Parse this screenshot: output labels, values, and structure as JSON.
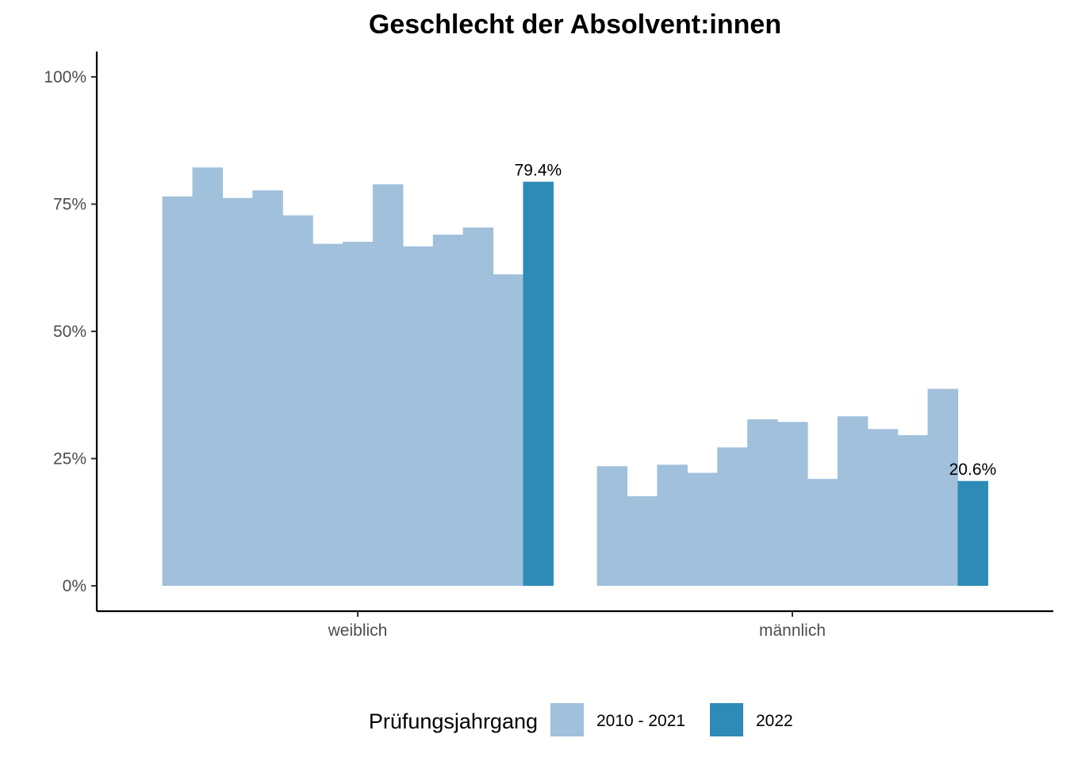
{
  "chart_data": {
    "type": "bar",
    "title": "Geschlecht der Absolvent:innen",
    "xlabel": "",
    "ylabel": "",
    "ylim": [
      0,
      1.0
    ],
    "yticks": [
      {
        "value": 0,
        "label": "0%"
      },
      {
        "value": 0.25,
        "label": "25%"
      },
      {
        "value": 0.5,
        "label": "50%"
      },
      {
        "value": 0.75,
        "label": "75%"
      },
      {
        "value": 1.0,
        "label": "100%"
      }
    ],
    "categories": [
      "weiblich",
      "männlich"
    ],
    "bars_per_category": 13,
    "values": {
      "weiblich": [
        0.765,
        0.822,
        0.762,
        0.777,
        0.728,
        0.672,
        0.676,
        0.789,
        0.667,
        0.69,
        0.704,
        0.612,
        0.794
      ],
      "männlich": [
        0.235,
        0.176,
        0.238,
        0.222,
        0.272,
        0.327,
        0.322,
        0.21,
        0.333,
        0.308,
        0.296,
        0.387,
        0.206
      ]
    },
    "series": [
      {
        "name": "2010 - 2021",
        "color": "#a0c0dc",
        "bar_indices": [
          0,
          1,
          2,
          3,
          4,
          5,
          6,
          7,
          8,
          9,
          10,
          11
        ]
      },
      {
        "name": "2022",
        "color": "#2e8bb8",
        "bar_indices": [
          12
        ]
      }
    ],
    "data_labels": {
      "weiblich": "79.4%",
      "männlich": "20.6%"
    },
    "legend": {
      "title": "Prüfungsjahrgang",
      "position": "bottom"
    },
    "grid": false
  }
}
